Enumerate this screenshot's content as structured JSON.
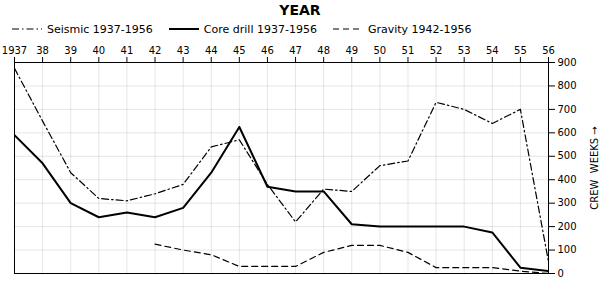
{
  "chart_data": {
    "type": "line",
    "title": "YEAR",
    "ylabel": "CREW  WEEKS",
    "x": [
      1937,
      1938,
      1939,
      1940,
      1941,
      1942,
      1943,
      1944,
      1945,
      1946,
      1947,
      1948,
      1949,
      1950,
      1951,
      1952,
      1953,
      1954,
      1955,
      1956
    ],
    "xlim": [
      1937,
      1956
    ],
    "xticks": [
      1937,
      {
        "value": 1938,
        "label": "38"
      },
      {
        "value": 1939,
        "label": "39"
      },
      {
        "value": 1940,
        "label": "40"
      },
      {
        "value": 1941,
        "label": "41"
      },
      {
        "value": 1942,
        "label": "42"
      },
      {
        "value": 1943,
        "label": "43"
      },
      {
        "value": 1944,
        "label": "44"
      },
      {
        "value": 1945,
        "label": "45"
      },
      {
        "value": 1946,
        "label": "46"
      },
      {
        "value": 1947,
        "label": "47"
      },
      {
        "value": 1948,
        "label": "48"
      },
      {
        "value": 1949,
        "label": "49"
      },
      {
        "value": 1950,
        "label": "50"
      },
      {
        "value": 1951,
        "label": "51"
      },
      {
        "value": 1952,
        "label": "52"
      },
      {
        "value": 1953,
        "label": "53"
      },
      {
        "value": 1954,
        "label": "54"
      },
      {
        "value": 1955,
        "label": "55"
      },
      {
        "value": 1956,
        "label": "56"
      }
    ],
    "ylim": [
      0,
      900
    ],
    "yticks": [
      0,
      100,
      200,
      300,
      400,
      500,
      600,
      700,
      800,
      900
    ],
    "grid": true,
    "legend": "upper left",
    "series": [
      {
        "name": "Seismic 1937-1956",
        "color": "#000000",
        "line_style": "dashdot",
        "values": [
          875,
          650,
          430,
          320,
          310,
          340,
          380,
          540,
          570,
          380,
          220,
          360,
          350,
          460,
          480,
          730,
          700,
          640,
          700,
          50
        ]
      },
      {
        "name": "Core drill 1937-1956",
        "color": "#000000",
        "line_style": "solid",
        "values": [
          590,
          470,
          300,
          240,
          260,
          240,
          280,
          430,
          625,
          370,
          350,
          350,
          210,
          200,
          200,
          200,
          200,
          175,
          25,
          10
        ]
      },
      {
        "name": "Gravity 1942-1956",
        "color": "#000000",
        "line_style": "dashed",
        "values": [
          null,
          null,
          null,
          null,
          null,
          125,
          100,
          80,
          30,
          30,
          30,
          90,
          120,
          120,
          90,
          25,
          25,
          25,
          10,
          0
        ]
      }
    ]
  }
}
